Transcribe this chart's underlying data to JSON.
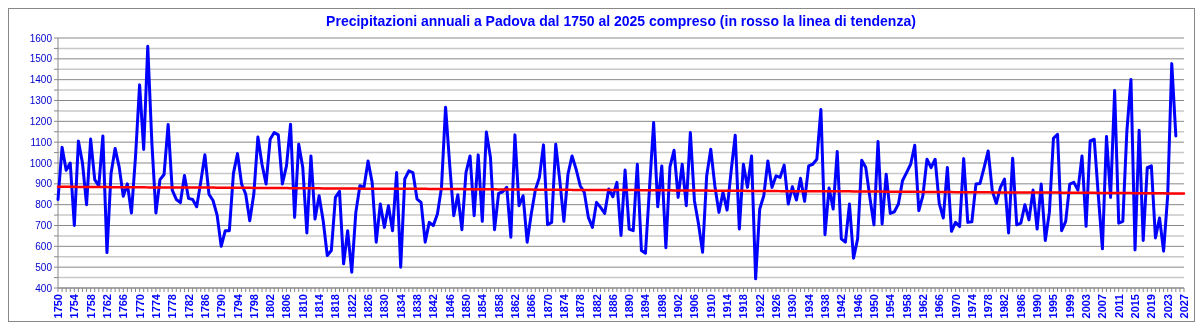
{
  "chart_data": {
    "type": "line",
    "title": "Precipitazioni annuali a Padova dal 1750 al  2025 compreso (in rosso la linea di tendenza)",
    "categories": [
      "1750",
      null,
      null,
      null,
      "1754",
      null,
      null,
      null,
      "1758",
      null,
      null,
      null,
      "1762",
      null,
      null,
      null,
      "1766",
      null,
      null,
      null,
      "1770",
      null,
      null,
      null,
      "1774",
      null,
      null,
      null,
      "1778",
      null,
      null,
      null,
      "1782",
      null,
      null,
      null,
      "1786",
      null,
      null,
      null,
      "1790",
      null,
      null,
      null,
      "1794",
      null,
      null,
      null,
      "1798",
      null,
      null,
      null,
      "1802",
      null,
      null,
      null,
      "1806",
      null,
      null,
      null,
      "1810",
      null,
      null,
      null,
      "1814",
      null,
      null,
      null,
      "1818",
      null,
      null,
      null,
      "1822",
      null,
      null,
      null,
      "1826",
      null,
      null,
      null,
      "1830",
      null,
      null,
      null,
      "1834",
      null,
      null,
      null,
      "1838",
      null,
      null,
      null,
      "1842",
      null,
      null,
      null,
      "1846",
      null,
      null,
      null,
      "1850",
      null,
      null,
      null,
      "1854",
      null,
      null,
      null,
      "1858",
      null,
      null,
      null,
      "1862",
      null,
      null,
      null,
      "1866",
      null,
      null,
      null,
      "1870",
      null,
      null,
      null,
      "1874",
      null,
      null,
      null,
      "1878",
      null,
      null,
      null,
      "1882",
      null,
      null,
      null,
      "1886",
      null,
      null,
      null,
      "1890",
      null,
      null,
      null,
      "1894",
      null,
      null,
      null,
      "1898",
      null,
      null,
      null,
      "1902",
      null,
      null,
      null,
      "1906",
      null,
      null,
      null,
      "1910",
      null,
      null,
      null,
      "1914",
      null,
      null,
      null,
      "1918",
      null,
      null,
      null,
      "1922",
      null,
      null,
      null,
      "1926",
      null,
      null,
      null,
      "1930",
      null,
      null,
      null,
      "1934",
      null,
      null,
      null,
      "1938",
      null,
      null,
      null,
      "1942",
      null,
      null,
      null,
      "1946",
      null,
      null,
      null,
      "1950",
      null,
      null,
      null,
      "1954",
      null,
      null,
      null,
      "1958",
      null,
      null,
      null,
      "1962",
      null,
      null,
      null,
      "1966",
      null,
      null,
      null,
      "1970",
      null,
      null,
      null,
      "1974",
      null,
      null,
      null,
      "1978",
      null,
      null,
      null,
      "1982",
      null,
      null,
      null,
      "1986",
      null,
      null,
      null,
      "1990",
      null,
      null,
      null,
      "1995",
      null,
      null,
      null,
      "1999",
      null,
      null,
      null,
      "2003",
      null,
      null,
      null,
      "2007",
      null,
      null,
      null,
      "2011",
      null,
      null,
      null,
      "2015",
      null,
      null,
      null,
      "2019",
      null,
      null,
      null,
      "2023",
      null,
      null,
      null,
      "2027"
    ],
    "series": [
      {
        "color": "#0000ff",
        "values": [
          825,
          1075,
          965,
          1000,
          700,
          1105,
          1000,
          800,
          1115,
          920,
          890,
          1130,
          570,
          950,
          1070,
          980,
          840,
          900,
          760,
          1030,
          1375,
          1065,
          1560,
          1100,
          760,
          920,
          945,
          1185,
          870,
          825,
          810,
          940,
          830,
          825,
          790,
          910,
          1040,
          850,
          820,
          750,
          600,
          675,
          675,
          950,
          1045,
          899,
          851,
          723,
          851,
          1125,
          994,
          899,
          1114,
          1146,
          1135,
          899,
          986,
          1186,
          739,
          1090,
          978,
          664,
          1034,
          731,
          843,
          723,
          556,
          580,
          835,
          864,
          516,
          675,
          476,
          763,
          891,
          883,
          1010,
          907,
          620,
          803,
          691,
          795,
          675,
          954,
          500,
          923,
          962,
          954,
          827,
          811,
          620,
          715,
          700,
          755,
          883,
          1268,
          994,
          747,
          848,
          680,
          954,
          1034,
          747,
          1039,
          720,
          1149,
          1026,
          680,
          854,
          862,
          883,
          644,
          1135,
          795,
          843,
          620,
          755,
          870,
          931,
          1087,
          704,
          715,
          1090,
          915,
          720,
          946,
          1034,
          970,
          891,
          859,
          739,
          691,
          811,
          787,
          758,
          875,
          838,
          907,
          652,
          966,
          683,
          675,
          994,
          580,
          567,
          883,
          1194,
          790,
          986,
          593,
          981,
          1061,
          835,
          994,
          795,
          1146,
          819,
          707,
          572,
          938,
          1066,
          891,
          763,
          859,
          774,
          962,
          1133,
          683,
          994,
          883,
          1034,
          444,
          779,
          843,
          1010,
          883,
          938,
          931,
          990,
          803,
          886,
          822,
          927,
          816,
          986,
          994,
          1018,
          1257,
          656,
          880,
          779,
          1055,
          636,
          620,
          803,
          543,
          636,
          1013,
          978,
          835,
          703,
          1103,
          707,
          946,
          758,
          766,
          803,
          915,
          954,
          994,
          1085,
          771,
          843,
          1018,
          978,
          1018,
          806,
          736,
          978,
          672,
          715,
          695,
          1021,
          715,
          718,
          899,
          902,
          978,
          1058,
          867,
          806,
          883,
          923,
          664,
          1023,
          703,
          711,
          800,
          727,
          870,
          683,
          899,
          628,
          763,
          1119,
          1138,
          675,
          720,
          899,
          907,
          870,
          1034,
          696,
          1106,
          1114,
          843,
          588,
          1127,
          835,
          1348,
          711,
          720,
          1154,
          1401,
          583,
          1157,
          628,
          978,
          986,
          640,
          736,
          577,
          843,
          1477,
          1130,
          null,
          null
        ]
      },
      {
        "color": "#ff0000",
        "values": [
          886,
          886,
          886,
          886,
          886,
          885,
          885,
          885,
          885,
          885,
          885,
          885,
          885,
          884,
          884,
          884,
          884,
          884,
          884,
          884,
          884,
          884,
          883,
          883,
          883,
          883,
          883,
          883,
          883,
          883,
          883,
          882,
          882,
          882,
          882,
          882,
          882,
          882,
          882,
          881,
          881,
          881,
          881,
          881,
          881,
          881,
          881,
          881,
          880,
          880,
          880,
          880,
          880,
          880,
          880,
          880,
          880,
          879,
          879,
          879,
          879,
          879,
          879,
          879,
          879,
          878,
          878,
          878,
          878,
          878,
          878,
          878,
          878,
          878,
          877,
          877,
          877,
          877,
          877,
          877,
          877,
          877,
          876,
          876,
          876,
          876,
          876,
          876,
          876,
          876,
          876,
          875,
          875,
          875,
          875,
          875,
          875,
          875,
          875,
          875,
          874,
          874,
          874,
          874,
          874,
          874,
          874,
          874,
          873,
          873,
          873,
          873,
          873,
          873,
          873,
          873,
          873,
          872,
          872,
          872,
          872,
          872,
          872,
          872,
          872,
          872,
          871,
          871,
          871,
          871,
          871,
          871,
          871,
          871,
          870,
          870,
          870,
          870,
          870,
          870,
          870,
          870,
          870,
          869,
          869,
          869,
          869,
          869,
          869,
          869,
          869,
          868,
          868,
          868,
          868,
          868,
          868,
          868,
          868,
          868,
          867,
          867,
          867,
          867,
          867,
          867,
          867,
          867,
          867,
          866,
          866,
          866,
          866,
          866,
          866,
          866,
          866,
          865,
          865,
          865,
          865,
          865,
          865,
          865,
          865,
          865,
          864,
          864,
          864,
          864,
          864,
          864,
          864,
          864,
          864,
          863,
          863,
          863,
          863,
          863,
          863,
          863,
          863,
          862,
          862,
          862,
          862,
          862,
          862,
          862,
          862,
          862,
          861,
          861,
          861,
          861,
          861,
          861,
          861,
          861,
          860,
          860,
          860,
          860,
          860,
          860,
          860,
          860,
          860,
          859,
          859,
          859,
          859,
          859,
          859,
          859,
          859,
          859,
          858,
          858,
          858,
          858,
          858,
          858,
          858,
          858,
          857,
          857,
          857,
          857,
          857,
          857,
          857,
          857,
          857,
          856,
          856,
          856,
          856,
          856,
          856,
          856,
          856,
          856,
          855,
          855,
          855,
          855,
          855,
          855,
          855,
          855,
          854,
          854,
          854,
          854,
          854
        ]
      }
    ],
    "ylim": [
      400,
      1600
    ],
    "yticks": [
      400,
      {
        "value": 450,
        "label": null
      },
      500,
      {
        "value": 550,
        "label": null
      },
      600,
      {
        "value": 650,
        "label": null
      },
      700,
      {
        "value": 750,
        "label": null
      },
      800,
      {
        "value": 850,
        "label": null
      },
      900,
      {
        "value": 950,
        "label": null
      },
      1000,
      {
        "value": 1050,
        "label": null
      },
      1100,
      {
        "value": 1150,
        "label": null
      },
      1200,
      {
        "value": 1250,
        "label": null
      },
      1300,
      {
        "value": 1350,
        "label": null
      },
      1400,
      {
        "value": 1450,
        "label": null
      },
      1500,
      {
        "value": 1550,
        "label": null
      },
      1600
    ],
    "grid": "y",
    "marker": "none",
    "line_style": "solid"
  }
}
